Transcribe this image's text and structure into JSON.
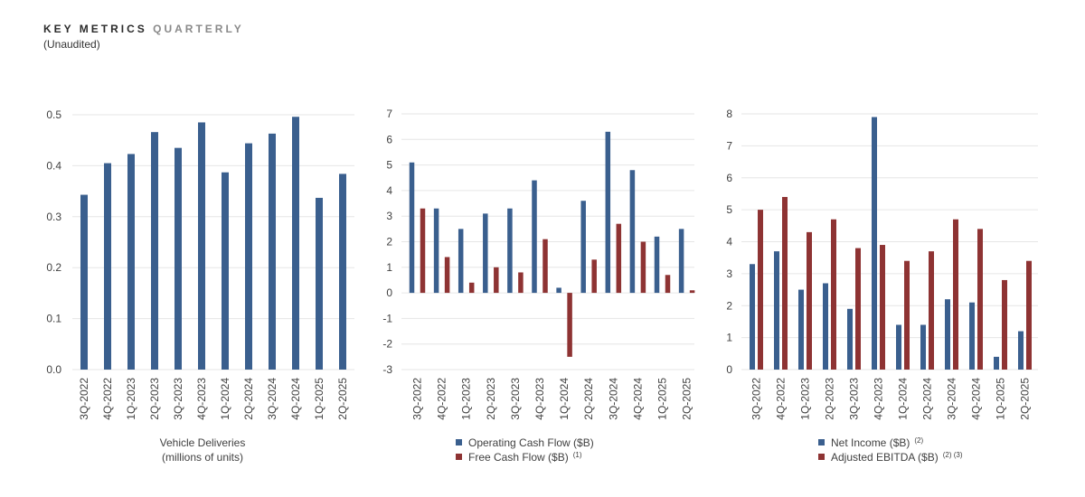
{
  "header": {
    "title_main": "KEY METRICS",
    "title_suffix": "QUARTERLY",
    "subtitle": "(Unaudited)"
  },
  "colors": {
    "blue": "#3a5f8e",
    "red": "#8e3333",
    "grid": "#e6e6e6"
  },
  "chart_data": [
    {
      "type": "bar",
      "categories": [
        "3Q-2022",
        "4Q-2022",
        "1Q-2023",
        "2Q-2023",
        "3Q-2023",
        "4Q-2023",
        "1Q-2024",
        "2Q-2024",
        "3Q-2024",
        "4Q-2024",
        "1Q-2025",
        "2Q-2025"
      ],
      "series": [
        {
          "values": [
            0.343,
            0.405,
            0.423,
            0.466,
            0.435,
            0.485,
            0.387,
            0.444,
            0.463,
            0.496,
            0.337,
            0.384
          ]
        }
      ],
      "ylim": [
        0,
        0.5
      ],
      "yticks": [
        "0.0",
        "0.1",
        "0.2",
        "0.3",
        "0.4",
        "0.5"
      ],
      "legend_lines": [
        "Vehicle Deliveries",
        "(millions of units)"
      ]
    },
    {
      "type": "bar",
      "categories": [
        "3Q-2022",
        "4Q-2022",
        "1Q-2023",
        "2Q-2023",
        "3Q-2023",
        "4Q-2023",
        "1Q-2024",
        "2Q-2024",
        "3Q-2024",
        "4Q-2024",
        "1Q-2025",
        "2Q-2025"
      ],
      "series": [
        {
          "name": "Operating Cash Flow ($B)",
          "note": "",
          "values": [
            5.1,
            3.3,
            2.5,
            3.1,
            3.3,
            4.4,
            0.2,
            3.6,
            6.3,
            4.8,
            2.2,
            2.5
          ]
        },
        {
          "name": "Free Cash Flow ($B)",
          "note": "(1)",
          "values": [
            3.3,
            1.4,
            0.4,
            1.0,
            0.8,
            2.1,
            -2.5,
            1.3,
            2.7,
            2.0,
            0.7,
            0.1
          ]
        }
      ],
      "ylim": [
        -3,
        7
      ],
      "yticks": [
        "-3",
        "-2",
        "-1",
        "0",
        "1",
        "2",
        "3",
        "4",
        "5",
        "6",
        "7"
      ],
      "legend": "bottom"
    },
    {
      "type": "bar",
      "categories": [
        "3Q-2022",
        "4Q-2022",
        "1Q-2023",
        "2Q-2023",
        "3Q-2023",
        "4Q-2023",
        "1Q-2024",
        "2Q-2024",
        "3Q-2024",
        "4Q-2024",
        "1Q-2025",
        "2Q-2025"
      ],
      "series": [
        {
          "name": "Net Income ($B)",
          "note": "(2)",
          "values": [
            3.3,
            3.7,
            2.5,
            2.7,
            1.9,
            7.9,
            1.4,
            1.4,
            2.2,
            2.1,
            0.4,
            1.2
          ]
        },
        {
          "name": "Adjusted EBITDA ($B)",
          "note": "(2) (3)",
          "values": [
            5.0,
            5.4,
            4.3,
            4.7,
            3.8,
            3.9,
            3.4,
            3.7,
            4.7,
            4.4,
            2.8,
            3.4
          ]
        }
      ],
      "ylim": [
        0,
        8
      ],
      "yticks": [
        "0",
        "1",
        "2",
        "3",
        "4",
        "5",
        "6",
        "7",
        "8"
      ],
      "legend": "bottom"
    }
  ]
}
